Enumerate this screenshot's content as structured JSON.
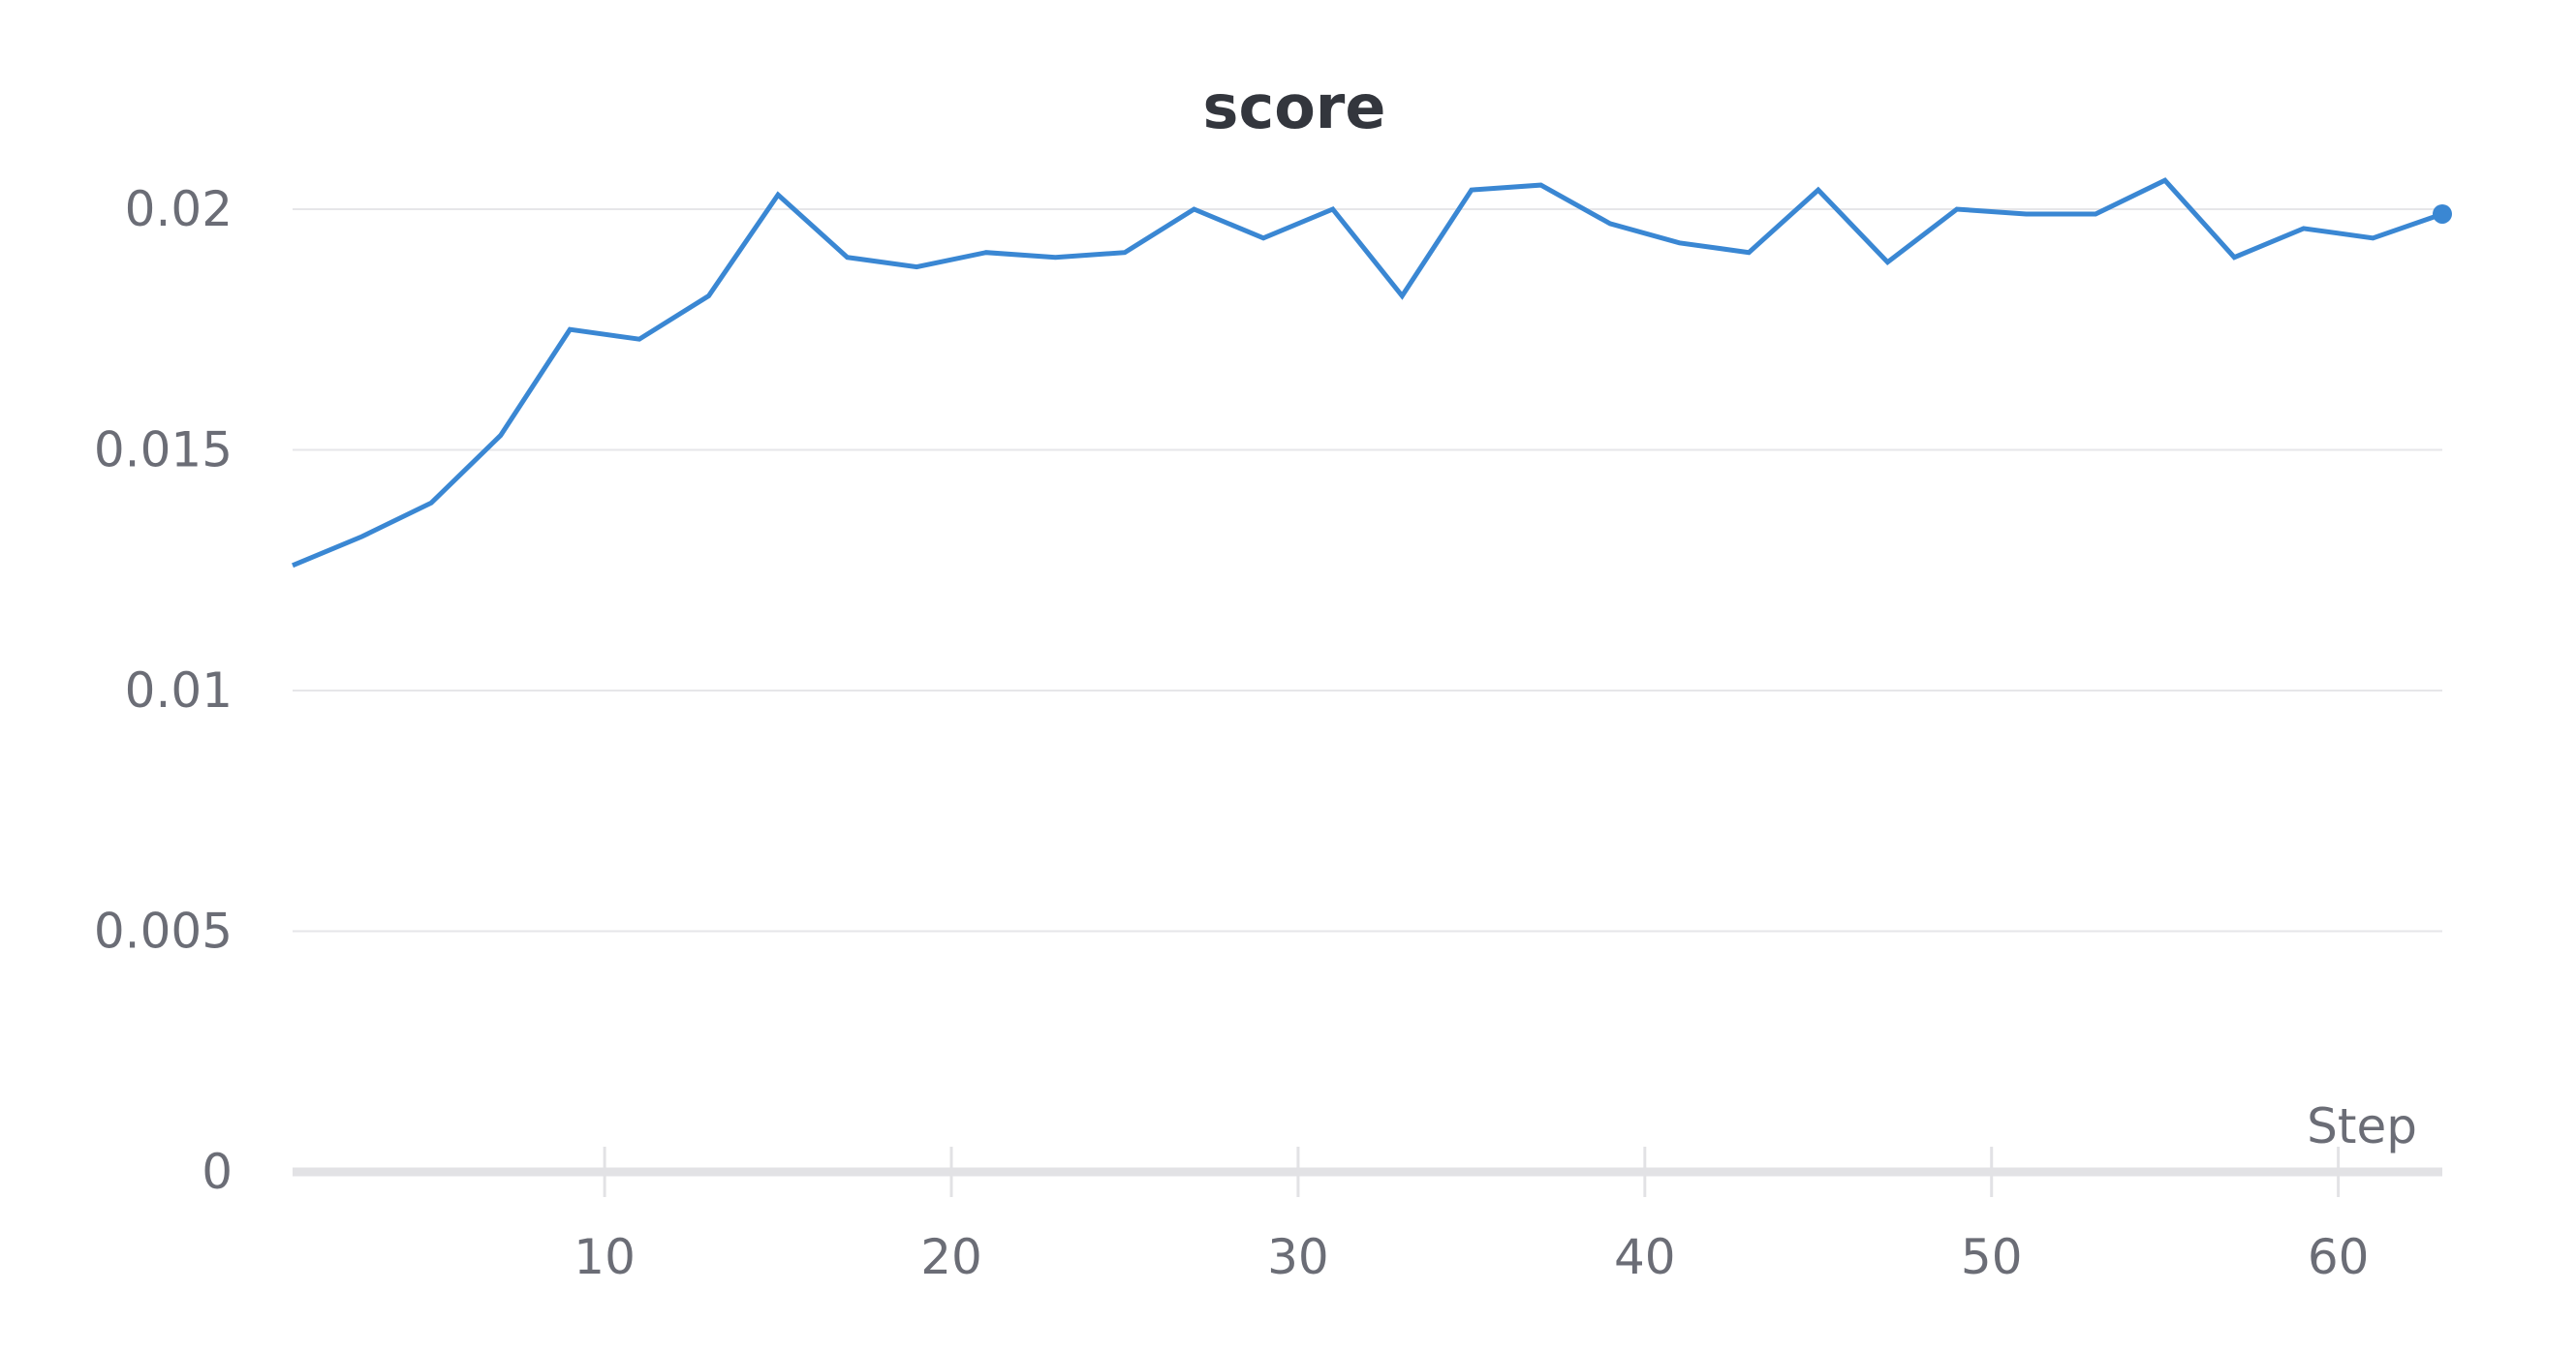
{
  "chart_data": {
    "type": "line",
    "title": "score",
    "xlabel": "Step",
    "ylabel": "",
    "xlim": [
      1,
      63
    ],
    "ylim": [
      0,
      0.0225
    ],
    "x_ticks": [
      10,
      20,
      30,
      40,
      50,
      60
    ],
    "x_tick_labels": [
      "10",
      "20",
      "30",
      "40",
      "50",
      "60"
    ],
    "y_ticks": [
      0,
      0.005,
      0.01,
      0.015,
      0.02
    ],
    "y_tick_labels": [
      "0",
      "0.005",
      "0.01",
      "0.015",
      "0.02"
    ],
    "grid": true,
    "line_color": "#3a87d3",
    "series": [
      {
        "x": [
          1,
          3,
          5,
          7,
          9,
          11,
          13,
          15,
          17,
          19,
          21,
          23,
          25,
          27,
          29,
          31,
          33,
          35,
          37,
          39,
          41,
          43,
          45,
          47,
          49,
          51,
          53,
          55,
          57,
          59,
          61,
          63
        ],
        "values": [
          0.0126,
          0.0132,
          0.0139,
          0.0153,
          0.0175,
          0.0173,
          0.0182,
          0.0203,
          0.019,
          0.0188,
          0.0191,
          0.019,
          0.0191,
          0.02,
          0.0194,
          0.02,
          0.0182,
          0.0204,
          0.0205,
          0.0197,
          0.0193,
          0.0191,
          0.0204,
          0.0189,
          0.02,
          0.0199,
          0.0199,
          0.0206,
          0.019,
          0.0196,
          0.0194,
          0.0199
        ]
      }
    ]
  }
}
